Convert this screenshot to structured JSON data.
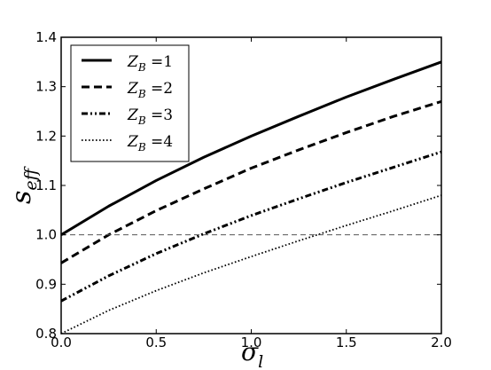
{
  "chart_data": {
    "type": "line",
    "xlabel": "σ",
    "xlabel_sub": "l",
    "ylabel": "s",
    "ylabel_sub": "eff",
    "xlim": [
      0.0,
      2.0
    ],
    "ylim": [
      0.8,
      1.4
    ],
    "xticks": [
      "0.0",
      "0.5",
      "1.0",
      "1.5",
      "2.0"
    ],
    "yticks": [
      "0.8",
      "0.9",
      "1.0",
      "1.1",
      "1.2",
      "1.3",
      "1.4"
    ],
    "grid": false,
    "legend_position": "top-left",
    "reference_line": {
      "y": 1.0,
      "style": "dashed",
      "color": "#555555"
    },
    "series": [
      {
        "name": "Z_B =1",
        "legend_main": "Z",
        "legend_sub": "B",
        "legend_rest": " =1",
        "style": "solid",
        "color": "#000000",
        "x": [
          0.0,
          0.25,
          0.5,
          0.75,
          1.0,
          1.25,
          1.5,
          1.75,
          2.0
        ],
        "y": [
          1.0,
          1.058,
          1.11,
          1.157,
          1.2,
          1.24,
          1.279,
          1.315,
          1.35
        ]
      },
      {
        "name": "Z_B =2",
        "legend_main": "Z",
        "legend_sub": "B",
        "legend_rest": " =2",
        "style": "dashed",
        "color": "#000000",
        "x": [
          0.0,
          0.25,
          0.5,
          0.75,
          1.0,
          1.25,
          1.5,
          1.75,
          2.0
        ],
        "y": [
          0.943,
          1.0,
          1.049,
          1.093,
          1.135,
          1.172,
          1.207,
          1.24,
          1.27
        ]
      },
      {
        "name": "Z_B =3",
        "legend_main": "Z",
        "legend_sub": "B",
        "legend_rest": " =3",
        "style": "dashdot",
        "color": "#000000",
        "x": [
          0.0,
          0.25,
          0.5,
          0.75,
          1.0,
          1.25,
          1.5,
          1.75,
          2.0
        ],
        "y": [
          0.866,
          0.917,
          0.962,
          1.002,
          1.039,
          1.073,
          1.106,
          1.137,
          1.168
        ]
      },
      {
        "name": "Z_B =4",
        "legend_main": "Z",
        "legend_sub": "B",
        "legend_rest": " =4",
        "style": "dotted",
        "color": "#000000",
        "x": [
          0.0,
          0.25,
          0.5,
          0.75,
          1.0,
          1.25,
          1.5,
          1.75,
          2.0
        ],
        "y": [
          0.8,
          0.847,
          0.887,
          0.923,
          0.956,
          0.988,
          1.019,
          1.049,
          1.08
        ]
      }
    ]
  }
}
